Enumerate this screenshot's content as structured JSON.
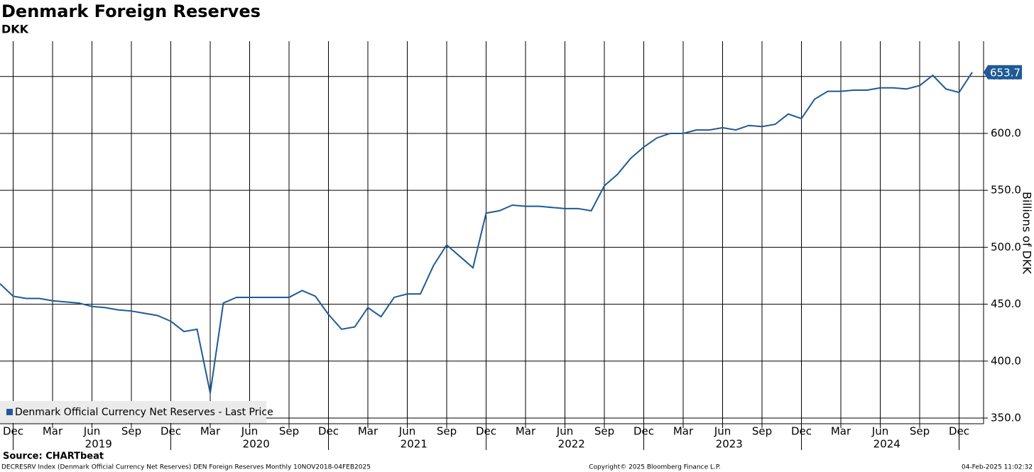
{
  "chart_data": {
    "type": "line",
    "title": "Denmark Foreign Reserves",
    "subtitle": "DKK",
    "y_axis_label": "Billions of DKK",
    "source": "Source: CHARTbeat",
    "footer_left": "DECRESRV Index (Denmark Official Currency Net Reserves) DEN Foreign Reserves  Monthly 10NOV2018-04FEB2025",
    "footer_center": "Copyright© 2025 Bloomberg Finance L.P.",
    "footer_right": "04-Feb-2025 11:02:32",
    "legend_position": "lower left",
    "grid": true,
    "x": [
      "2018-11",
      "2018-12",
      "2019-01",
      "2019-02",
      "2019-03",
      "2019-04",
      "2019-05",
      "2019-06",
      "2019-07",
      "2019-08",
      "2019-09",
      "2019-10",
      "2019-11",
      "2019-12",
      "2020-01",
      "2020-02",
      "2020-03",
      "2020-04",
      "2020-05",
      "2020-06",
      "2020-07",
      "2020-08",
      "2020-09",
      "2020-10",
      "2020-11",
      "2020-12",
      "2021-01",
      "2021-02",
      "2021-03",
      "2021-04",
      "2021-05",
      "2021-06",
      "2021-07",
      "2021-08",
      "2021-09",
      "2021-10",
      "2021-11",
      "2021-12",
      "2022-01",
      "2022-02",
      "2022-03",
      "2022-04",
      "2022-05",
      "2022-06",
      "2022-07",
      "2022-08",
      "2022-09",
      "2022-10",
      "2022-11",
      "2022-12",
      "2023-01",
      "2023-02",
      "2023-03",
      "2023-04",
      "2023-05",
      "2023-06",
      "2023-07",
      "2023-08",
      "2023-09",
      "2023-10",
      "2023-11",
      "2023-12",
      "2024-01",
      "2024-02",
      "2024-03",
      "2024-04",
      "2024-05",
      "2024-06",
      "2024-07",
      "2024-08",
      "2024-09",
      "2024-10",
      "2024-11",
      "2024-12",
      "2025-01"
    ],
    "series": [
      {
        "name": "Denmark Official Currency Net Reserves - Last Price",
        "color": "#1f5a96",
        "values": [
          468,
          457,
          455,
          455,
          453,
          452,
          451,
          448,
          447,
          445,
          444,
          442,
          440,
          435,
          426,
          428,
          372,
          451,
          456,
          456,
          456,
          456,
          456,
          462,
          457,
          441,
          428,
          430,
          447,
          439,
          456,
          459,
          459,
          484,
          502,
          492,
          482,
          530,
          532,
          537,
          536,
          536,
          535,
          534,
          534,
          532,
          554,
          564,
          578,
          588,
          596,
          600,
          600,
          603,
          603,
          605,
          603,
          607,
          606,
          608,
          617,
          613,
          630,
          637,
          637,
          638,
          638,
          640,
          640,
          639,
          642,
          651,
          639,
          636,
          653.7
        ]
      }
    ],
    "ylim": [
      345,
      681
    ],
    "yticks": [
      {
        "value": 350,
        "label": "350.0"
      },
      {
        "value": 400,
        "label": "400.0"
      },
      {
        "value": 450,
        "label": "450.0"
      },
      {
        "value": 500,
        "label": "500.0"
      },
      {
        "value": 550,
        "label": "550.0"
      },
      {
        "value": 600,
        "label": "600.0"
      },
      {
        "value": 650,
        "label": "650.0"
      }
    ],
    "xticks": [
      {
        "value": "2018-12",
        "label": "Dec"
      },
      {
        "value": "2019-03",
        "label": "Mar"
      },
      {
        "value": "2019-06",
        "label": "Jun"
      },
      {
        "value": "2019-09",
        "label": "Sep"
      },
      {
        "value": "2019-12",
        "label": "Dec"
      },
      {
        "value": "2020-03",
        "label": "Mar"
      },
      {
        "value": "2020-06",
        "label": "Jun"
      },
      {
        "value": "2020-09",
        "label": "Sep"
      },
      {
        "value": "2020-12",
        "label": "Dec"
      },
      {
        "value": "2021-03",
        "label": "Mar"
      },
      {
        "value": "2021-06",
        "label": "Jun"
      },
      {
        "value": "2021-09",
        "label": "Sep"
      },
      {
        "value": "2021-12",
        "label": "Dec"
      },
      {
        "value": "2022-03",
        "label": "Mar"
      },
      {
        "value": "2022-06",
        "label": "Jun"
      },
      {
        "value": "2022-09",
        "label": "Sep"
      },
      {
        "value": "2022-12",
        "label": "Dec"
      },
      {
        "value": "2023-03",
        "label": "Mar"
      },
      {
        "value": "2023-06",
        "label": "Jun"
      },
      {
        "value": "2023-09",
        "label": "Sep"
      },
      {
        "value": "2023-12",
        "label": "Dec"
      },
      {
        "value": "2024-03",
        "label": "Mar"
      },
      {
        "value": "2024-06",
        "label": "Jun"
      },
      {
        "value": "2024-09",
        "label": "Sep"
      },
      {
        "value": "2024-12",
        "label": "Dec"
      }
    ],
    "years": [
      "2019",
      "2020",
      "2021",
      "2022",
      "2023",
      "2024"
    ]
  }
}
